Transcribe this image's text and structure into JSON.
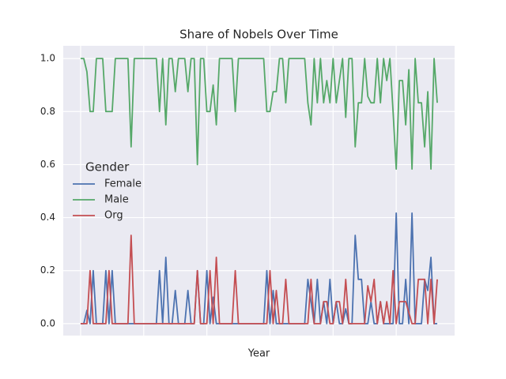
{
  "chart_data": {
    "type": "line",
    "title": "Share of Nobels Over Time",
    "xlabel": "Year",
    "legend_title": "Gender",
    "legend": "center left",
    "grid": true,
    "categories": [
      null,
      null,
      null,
      null,
      null,
      null,
      null,
      null,
      null,
      null,
      null,
      null,
      null,
      null,
      null,
      null,
      null,
      null,
      null,
      null,
      null,
      null,
      null,
      null,
      null,
      null,
      null,
      null,
      null,
      null,
      null,
      null,
      null,
      null,
      null,
      null,
      null,
      null,
      null,
      null,
      null,
      null,
      null,
      null,
      null,
      null,
      null,
      null,
      null,
      null,
      null,
      null,
      null,
      null,
      null,
      null,
      null,
      null,
      null,
      null,
      null,
      null,
      null,
      null,
      null,
      null,
      null,
      null,
      null,
      null,
      null,
      null,
      null,
      null,
      null,
      null,
      null,
      null,
      null,
      null,
      null,
      null,
      null,
      null,
      null,
      null,
      null,
      null,
      null,
      null,
      null,
      null,
      null,
      null,
      null,
      null,
      null,
      null,
      null,
      null,
      null,
      null,
      null,
      null,
      null,
      null,
      null,
      null,
      null,
      null,
      null,
      null,
      null,
      null
    ],
    "xlim": [
      -5.5,
      118.5
    ],
    "xticks": [
      0,
      20,
      40,
      60,
      80,
      100
    ],
    "ylim": [
      -0.045,
      1.048
    ],
    "yticks": [
      {
        "value": 0,
        "label": "0.0"
      },
      0.2,
      0.4,
      0.6,
      0.8,
      {
        "value": 1,
        "label": "1.0"
      }
    ],
    "series": [
      {
        "name": "Female",
        "color": "#4c72b0",
        "values": [
          0,
          0,
          0.05,
          0,
          0.2,
          0,
          0,
          0,
          0.2,
          0,
          0.2,
          0,
          0,
          0,
          0,
          0,
          0,
          0,
          0,
          0,
          0,
          0,
          0,
          0,
          0,
          0.2,
          0,
          0.25,
          0,
          0,
          0.125,
          0,
          0,
          0,
          0.125,
          0,
          0,
          0.2,
          0,
          0,
          0.2,
          0,
          0.1,
          0,
          0,
          0,
          0,
          0,
          0,
          0,
          0,
          0,
          0,
          0,
          0,
          0,
          0,
          0,
          0,
          0.2,
          0,
          0.125,
          0,
          0,
          0,
          0,
          0,
          0,
          0,
          0,
          0,
          0,
          0.167,
          0.083,
          0,
          0.167,
          0,
          0.083,
          0,
          0.167,
          0,
          0.083,
          0,
          0,
          0.056,
          0,
          0,
          0.333,
          0.167,
          0.167,
          0,
          0,
          0.083,
          0,
          0,
          0.083,
          0,
          0,
          0,
          0,
          0.417,
          0,
          0,
          0.167,
          0,
          0.417,
          0,
          0,
          0,
          0.167,
          0.125,
          0.25,
          0,
          0
        ]
      },
      {
        "name": "Male",
        "color": "#55a868",
        "values": [
          1,
          1,
          0.95,
          0.8,
          0.8,
          1,
          1,
          1,
          0.8,
          0.8,
          0.8,
          1,
          1,
          1,
          1,
          1,
          0.667,
          1,
          1,
          1,
          1,
          1,
          1,
          1,
          1,
          0.8,
          1,
          0.75,
          1,
          1,
          0.875,
          1,
          1,
          1,
          0.875,
          1,
          1,
          0.6,
          1,
          1,
          0.8,
          0.8,
          0.9,
          0.75,
          1,
          1,
          1,
          1,
          1,
          0.8,
          1,
          1,
          1,
          1,
          1,
          1,
          1,
          1,
          1,
          0.8,
          0.8,
          0.875,
          0.875,
          1,
          1,
          0.833,
          1,
          1,
          1,
          1,
          1,
          1,
          0.833,
          0.75,
          1,
          0.833,
          1,
          0.833,
          0.917,
          0.833,
          1,
          0.833,
          0.917,
          1,
          0.778,
          1,
          1,
          0.667,
          0.833,
          0.833,
          1,
          0.857,
          0.833,
          0.833,
          1,
          0.833,
          1,
          0.917,
          1,
          0.8,
          0.583,
          0.917,
          0.917,
          0.75,
          0.958,
          0.583,
          1,
          0.833,
          0.833,
          0.667,
          0.875,
          0.583,
          1,
          0.833
        ]
      },
      {
        "name": "Org",
        "color": "#c44e52",
        "values": [
          0,
          0,
          0,
          0.2,
          0,
          0,
          0,
          0,
          0,
          0.2,
          0,
          0,
          0,
          0,
          0,
          0,
          0.333,
          0,
          0,
          0,
          0,
          0,
          0,
          0,
          0,
          0,
          0,
          0,
          0,
          0,
          0,
          0,
          0,
          0,
          0,
          0,
          0,
          0.2,
          0,
          0,
          0,
          0.2,
          0,
          0.25,
          0,
          0,
          0,
          0,
          0,
          0.2,
          0,
          0,
          0,
          0,
          0,
          0,
          0,
          0,
          0,
          0,
          0.2,
          0,
          0.125,
          0,
          0,
          0.167,
          0,
          0,
          0,
          0,
          0,
          0,
          0,
          0.167,
          0,
          0,
          0,
          0.083,
          0.083,
          0,
          0,
          0.083,
          0.083,
          0,
          0.167,
          0,
          0,
          0,
          0,
          0,
          0,
          0.143,
          0.083,
          0.167,
          0,
          0.083,
          0,
          0.083,
          0,
          0.2,
          0,
          0.083,
          0.083,
          0.083,
          0.042,
          0,
          0,
          0.167,
          0.167,
          0.167,
          0,
          0.167,
          0,
          0.167
        ]
      }
    ]
  }
}
